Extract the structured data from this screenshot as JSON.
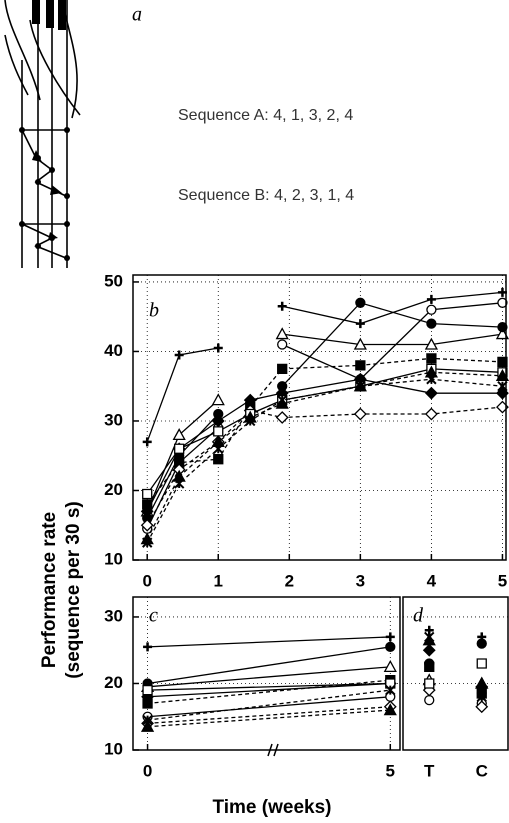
{
  "figure": {
    "ylabel": [
      "Performance rate",
      "(sequence per 30 s)"
    ],
    "xlabel": "Time (weeks)"
  },
  "panel_a": {
    "label": "a",
    "sequences": [
      "Sequence A: 4, 1, 3, 2, 4",
      "Sequence B: 4, 2, 3, 1, 4"
    ]
  },
  "chart_data": [
    {
      "type": "line",
      "label": "b",
      "x": [
        0,
        0.45,
        1,
        1.45,
        1.9,
        3,
        4,
        5
      ],
      "xlim": [
        -0.2,
        5.05
      ],
      "ylim": [
        10,
        51
      ],
      "xticks": [
        0,
        1,
        2,
        3,
        4,
        5
      ],
      "yticks": [
        10,
        20,
        30,
        40,
        50
      ],
      "grid": true,
      "series": [
        {
          "color": "#000",
          "marker": "plus",
          "dash": false,
          "values": [
            27,
            39.5,
            40.5,
            null,
            46.5,
            44,
            47.5,
            48.5
          ]
        },
        {
          "color": "#000",
          "marker": "circle-open",
          "dash": false,
          "values": [
            14.5,
            24,
            29,
            null,
            41,
            36,
            46,
            47
          ]
        },
        {
          "color": "#000",
          "marker": "triangle-open",
          "dash": false,
          "values": [
            17,
            28,
            33,
            null,
            42.5,
            41,
            41,
            42.5
          ]
        },
        {
          "color": "#000",
          "marker": "circle",
          "dash": false,
          "values": [
            16,
            25,
            31,
            null,
            35,
            47,
            44,
            43.5
          ]
        },
        {
          "color": "#000",
          "marker": "square",
          "dash": true,
          "values": [
            18,
            24,
            24.5,
            32,
            37.5,
            38,
            39,
            38.5
          ]
        },
        {
          "color": "#000",
          "marker": "diamond-open",
          "dash": true,
          "values": [
            15,
            23,
            27,
            31.5,
            30.5,
            31,
            31,
            32
          ]
        },
        {
          "color": "#000",
          "marker": "diamond",
          "dash": false,
          "values": [
            17,
            26,
            30,
            33,
            34,
            36,
            34,
            34
          ]
        },
        {
          "color": "#000",
          "marker": "square-open",
          "dash": false,
          "values": [
            19.5,
            26,
            28.5,
            31,
            33,
            35,
            37.5,
            37
          ]
        },
        {
          "color": "#000",
          "marker": "triangle",
          "dash": true,
          "values": [
            13,
            22,
            27,
            30.5,
            32.5,
            35,
            37,
            36.5
          ]
        },
        {
          "color": "#000",
          "marker": "star",
          "dash": true,
          "values": [
            12.5,
            21,
            26,
            30,
            33,
            35,
            36,
            35
          ]
        }
      ]
    },
    {
      "type": "line",
      "label": "c",
      "x": [
        0,
        5
      ],
      "xlim": [
        -0.3,
        5.2
      ],
      "ylim": [
        10,
        33
      ],
      "xticks": [
        0,
        5
      ],
      "yticks": [
        10,
        20,
        30
      ],
      "grid": true,
      "series": [
        {
          "color": "#000",
          "marker": "plus",
          "dash": false,
          "values": [
            25.5,
            27
          ]
        },
        {
          "color": "#000",
          "marker": "circle-open",
          "dash": false,
          "values": [
            15,
            18
          ]
        },
        {
          "color": "#000",
          "marker": "triangle-open",
          "dash": false,
          "values": [
            19.5,
            22.5
          ]
        },
        {
          "color": "#000",
          "marker": "circle",
          "dash": false,
          "values": [
            20,
            25.5
          ]
        },
        {
          "color": "#000",
          "marker": "square",
          "dash": true,
          "values": [
            17,
            20.5
          ]
        },
        {
          "color": "#000",
          "marker": "diamond-open",
          "dash": true,
          "values": [
            14,
            16.5
          ]
        },
        {
          "color": "#000",
          "marker": "diamond",
          "dash": false,
          "values": [
            18,
            20
          ]
        },
        {
          "color": "#000",
          "marker": "square-open",
          "dash": false,
          "values": [
            19,
            20
          ]
        },
        {
          "color": "#000",
          "marker": "triangle",
          "dash": true,
          "values": [
            13.5,
            16
          ]
        },
        {
          "color": "#000",
          "marker": "star",
          "dash": true,
          "values": [
            14.5,
            19
          ]
        }
      ]
    },
    {
      "type": "scatter",
      "label": "d",
      "categories": [
        "T",
        "C"
      ],
      "ylim": [
        10,
        33
      ],
      "grid": true,
      "series": [
        {
          "color": "#000",
          "marker": "plus",
          "values": [
            28,
            27
          ]
        },
        {
          "color": "#000",
          "marker": "circle-open",
          "values": [
            17.5,
            17
          ]
        },
        {
          "color": "#000",
          "marker": "triangle-open",
          "values": [
            20.5,
            20
          ]
        },
        {
          "color": "#000",
          "marker": "circle",
          "values": [
            23,
            26
          ]
        },
        {
          "color": "#000",
          "marker": "square",
          "values": [
            22.5,
            18.5
          ]
        },
        {
          "color": "#000",
          "marker": "diamond-open",
          "values": [
            19,
            16.5
          ]
        },
        {
          "color": "#000",
          "marker": "diamond",
          "values": [
            25,
            19.5
          ]
        },
        {
          "color": "#000",
          "marker": "square-open",
          "values": [
            20,
            23
          ]
        },
        {
          "color": "#000",
          "marker": "triangle",
          "values": [
            26.5,
            20
          ]
        },
        {
          "color": "#000",
          "marker": "star",
          "values": [
            27,
            18
          ]
        }
      ]
    }
  ]
}
